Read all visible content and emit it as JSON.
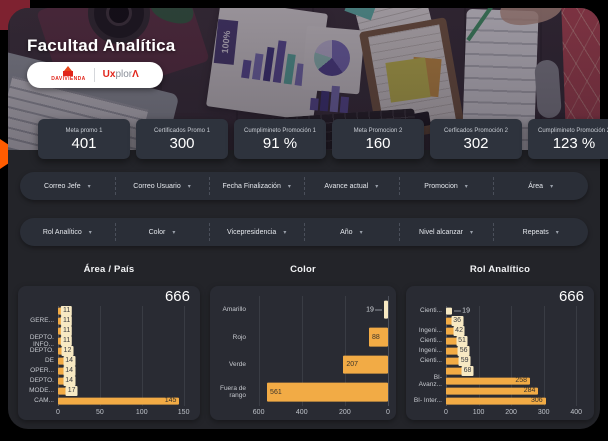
{
  "colors": {
    "accent_orange": "#F2AB45",
    "value_box_bg": "#F7E9C3",
    "davivienda_red": "#E1251B",
    "panel_bg": "#232429",
    "kpi_card_bg": "#2E333D",
    "chart_card_bg": "#292B33"
  },
  "header": {
    "title": "Facultad Analítica",
    "photo_label_100": "100%",
    "logo_davivienda": "DAVIVIENDA",
    "logo_uxplora": {
      "prefix": "Ux",
      "mid": "plor",
      "suffix": "Λ"
    }
  },
  "kpis": [
    {
      "label": "Meta promo 1",
      "value": "401"
    },
    {
      "label": "Certificados Promo 1",
      "value": "300"
    },
    {
      "label": "Cumplimineto Promoción 1",
      "value": "91 %"
    },
    {
      "label": "Meta Promocion 2",
      "value": "160"
    },
    {
      "label": "Cerficados Promoción 2",
      "value": "302"
    },
    {
      "label": "Cumplimineto Promoción 2",
      "value": "123 %"
    }
  ],
  "dropdown_caret": "▾",
  "filter_rows": [
    [
      "Correo Jefe",
      "Correo Usuario",
      "Fecha Finalización",
      "Avance actual",
      "Promocion",
      "Área"
    ],
    [
      "Rol Analítico",
      "Color",
      "Vicepresidencia",
      "Año",
      "Nivel alcanzar",
      "Repeats"
    ]
  ],
  "chart_data": [
    {
      "type": "bar",
      "orientation": "horizontal",
      "title": "Área / País",
      "total_label": "666",
      "categories": [
        "",
        "GERE...",
        "",
        "DEPTO. INFO...",
        "DEPTO.",
        "DE",
        "OPER...",
        "DEPTO.",
        "MODE...",
        "CAM..."
      ],
      "values": [
        11,
        11,
        11,
        11,
        12,
        14,
        14,
        14,
        17,
        145
      ],
      "xticks": [
        0,
        50,
        100,
        150
      ],
      "xmax": 160,
      "reversed": false,
      "grid": true,
      "box_below": 100,
      "leader_below": 0
    },
    {
      "type": "bar",
      "orientation": "horizontal",
      "title": "Color",
      "total_label": "",
      "categories": [
        "Amarillo",
        "Rojo",
        "Verde",
        "Fuera de rango"
      ],
      "values": [
        19,
        88,
        207,
        561
      ],
      "xticks": [
        600,
        400,
        200,
        0
      ],
      "xmax": 640,
      "reversed": true,
      "grid": true,
      "box_below": 0,
      "leader_below": 30
    },
    {
      "type": "bar",
      "orientation": "horizontal",
      "title": "Rol Analítico",
      "total_label": "666",
      "categories": [
        "Cienti...",
        "",
        "Ingeni...",
        "Cienti...",
        "Ingeni...",
        "Cienti...",
        "",
        "BI- Avanz...",
        "",
        "BI- Inter..."
      ],
      "values": [
        19,
        36,
        42,
        51,
        56,
        59,
        68,
        258,
        284,
        306
      ],
      "xticks": [
        0,
        100,
        200,
        300,
        400
      ],
      "xmax": 430,
      "reversed": false,
      "grid": true,
      "box_below": 100,
      "leader_below": 25
    }
  ]
}
